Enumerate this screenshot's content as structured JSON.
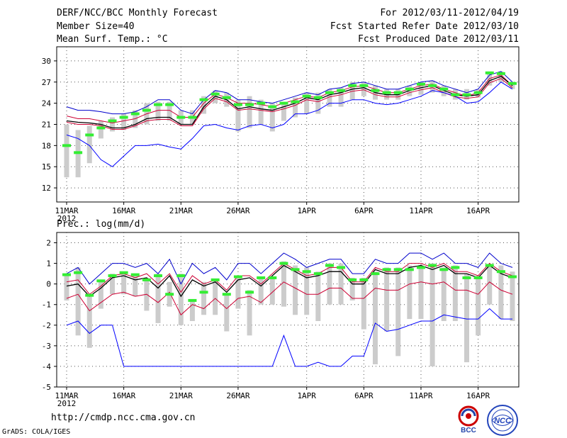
{
  "header": {
    "title": "DERF/NCC/BCC Monthly Forecast",
    "member_size": "Member Size=40",
    "variable": "Mean Surf. Temp.: °C",
    "forecast_period": "For 2012/03/11-2012/04/19",
    "started_refer": "Fcst Started Refer Date 2012/03/10",
    "produced": "Fcst Produced Date 2012/03/11"
  },
  "footer": {
    "url": "http://cmdp.ncc.cma.gov.cn",
    "grads": "GrADS: COLA/IGES",
    "logo_bcc": "BCC",
    "logo_ncc": "NCC"
  },
  "colors": {
    "max_line": "#0000cc",
    "min_line": "#0000ff",
    "mean_line": "#000000",
    "upper_line": "#cc0033",
    "lower_line": "#cc0033",
    "box": "#cccccc",
    "median": "#33ee33",
    "grid": "#555555"
  },
  "chart_data": [
    {
      "type": "line",
      "title": "Mean Surf. Temp.: °C",
      "x_ticks": [
        {
          "index": 0,
          "label": "11MAR"
        },
        {
          "index": 5,
          "label": "16MAR"
        },
        {
          "index": 10,
          "label": "21MAR"
        },
        {
          "index": 15,
          "label": "26MAR"
        },
        {
          "index": 21,
          "label": "1APR"
        },
        {
          "index": 26,
          "label": "6APR"
        },
        {
          "index": 31,
          "label": "11APR"
        },
        {
          "index": 36,
          "label": "16APR"
        }
      ],
      "year_label": "2012",
      "ylim": [
        10,
        32
      ],
      "yticks": [
        12,
        15,
        18,
        21,
        24,
        27,
        30
      ],
      "series": [
        {
          "name": "max",
          "values": [
            23.5,
            23.0,
            23.0,
            22.8,
            22.5,
            22.5,
            22.8,
            23.5,
            24.5,
            24.5,
            23.0,
            22.5,
            24.5,
            25.8,
            25.5,
            24.5,
            24.5,
            24.2,
            24.0,
            24.5,
            25.0,
            25.5,
            25.2,
            26.0,
            26.2,
            26.8,
            27.0,
            26.5,
            26.0,
            26.0,
            26.5,
            27.0,
            27.2,
            26.5,
            26.0,
            25.5,
            26.0,
            28.0,
            28.5,
            27.0
          ]
        },
        {
          "name": "upper",
          "values": [
            22.2,
            21.8,
            21.8,
            21.5,
            21.2,
            21.5,
            21.8,
            22.5,
            23.0,
            23.0,
            22.0,
            22.0,
            24.0,
            25.3,
            24.8,
            24.0,
            24.0,
            23.8,
            23.5,
            24.0,
            24.5,
            25.0,
            24.8,
            25.5,
            25.8,
            26.3,
            26.5,
            26.0,
            25.5,
            25.5,
            26.0,
            26.5,
            26.7,
            26.0,
            25.5,
            25.0,
            25.5,
            27.5,
            28.0,
            26.5
          ]
        },
        {
          "name": "mean",
          "values": [
            21.5,
            21.3,
            21.2,
            21.0,
            20.5,
            20.5,
            21.0,
            21.8,
            22.0,
            22.0,
            21.0,
            21.0,
            23.5,
            25.0,
            24.5,
            23.2,
            23.5,
            23.2,
            23.0,
            23.5,
            24.0,
            24.8,
            24.5,
            25.2,
            25.5,
            26.0,
            26.2,
            25.5,
            25.2,
            25.2,
            25.8,
            26.2,
            26.5,
            25.8,
            25.2,
            25.0,
            25.2,
            27.2,
            27.8,
            26.5
          ]
        },
        {
          "name": "lower",
          "values": [
            21.3,
            21.0,
            21.0,
            20.8,
            20.3,
            20.3,
            20.8,
            21.5,
            21.7,
            21.7,
            20.8,
            20.8,
            23.2,
            24.7,
            24.2,
            23.0,
            23.2,
            23.0,
            22.8,
            23.2,
            23.7,
            24.5,
            24.2,
            24.9,
            25.2,
            25.7,
            25.9,
            25.2,
            24.9,
            24.9,
            25.5,
            25.9,
            26.2,
            25.5,
            24.9,
            24.7,
            24.9,
            26.9,
            27.5,
            26.2
          ]
        },
        {
          "name": "min",
          "values": [
            19.5,
            19.0,
            18.0,
            16.0,
            15.0,
            16.5,
            18.0,
            18.0,
            18.2,
            17.8,
            17.5,
            19.0,
            20.8,
            21.0,
            20.5,
            20.2,
            20.8,
            21.0,
            20.5,
            21.0,
            22.5,
            22.5,
            23.0,
            24.0,
            24.0,
            24.5,
            24.5,
            24.0,
            23.8,
            24.0,
            24.5,
            25.0,
            25.8,
            25.5,
            25.0,
            24.0,
            24.2,
            25.5,
            27.0,
            26.0
          ]
        }
      ],
      "boxes": [
        {
          "low": 13.5,
          "high": 21.0,
          "median": 18.0
        },
        {
          "low": 13.5,
          "high": 20.2,
          "median": 17.0
        },
        {
          "low": 15.5,
          "high": 20.8,
          "median": 19.5
        },
        {
          "low": 19.0,
          "high": 21.5,
          "median": 20.5
        },
        {
          "low": 20.0,
          "high": 22.0,
          "median": 21.5
        },
        {
          "low": 20.2,
          "high": 22.5,
          "median": 22.0
        },
        {
          "low": 20.5,
          "high": 23.0,
          "median": 22.5
        },
        {
          "low": 21.0,
          "high": 24.0,
          "median": 23.0
        },
        {
          "low": 21.5,
          "high": 24.2,
          "median": 23.8
        },
        {
          "low": 21.5,
          "high": 24.2,
          "median": 23.8
        },
        {
          "low": 21.0,
          "high": 23.0,
          "median": 22.0
        },
        {
          "low": 21.0,
          "high": 23.0,
          "median": 22.0
        },
        {
          "low": 22.5,
          "high": 25.0,
          "median": 24.5
        },
        {
          "low": 24.0,
          "high": 25.8,
          "median": 25.3
        },
        {
          "low": 23.5,
          "high": 25.5,
          "median": 24.8
        },
        {
          "low": 20.0,
          "high": 24.5,
          "median": 23.8
        },
        {
          "low": 20.5,
          "high": 25.0,
          "median": 23.8
        },
        {
          "low": 21.0,
          "high": 24.5,
          "median": 24.0
        },
        {
          "low": 20.0,
          "high": 24.0,
          "median": 23.5
        },
        {
          "low": 21.5,
          "high": 24.2,
          "median": 24.0
        },
        {
          "low": 22.0,
          "high": 24.8,
          "median": 24.2
        },
        {
          "low": 22.5,
          "high": 25.5,
          "median": 25.0
        },
        {
          "low": 22.5,
          "high": 25.5,
          "median": 24.8
        },
        {
          "low": 23.5,
          "high": 26.0,
          "median": 25.5
        },
        {
          "low": 23.5,
          "high": 26.2,
          "median": 25.8
        },
        {
          "low": 24.5,
          "high": 27.0,
          "median": 26.5
        },
        {
          "low": 25.0,
          "high": 27.0,
          "median": 26.5
        },
        {
          "low": 24.5,
          "high": 26.5,
          "median": 25.8
        },
        {
          "low": 24.5,
          "high": 26.0,
          "median": 25.5
        },
        {
          "low": 24.5,
          "high": 26.0,
          "median": 25.5
        },
        {
          "low": 25.0,
          "high": 26.5,
          "median": 26.0
        },
        {
          "low": 25.2,
          "high": 27.0,
          "median": 26.7
        },
        {
          "low": 25.5,
          "high": 27.2,
          "median": 26.5
        },
        {
          "low": 25.0,
          "high": 26.5,
          "median": 26.0
        },
        {
          "low": 24.5,
          "high": 26.0,
          "median": 25.2
        },
        {
          "low": 24.5,
          "high": 26.0,
          "median": 25.2
        },
        {
          "low": 24.8,
          "high": 26.0,
          "median": 25.5
        },
        {
          "low": 26.5,
          "high": 28.5,
          "median": 28.3
        },
        {
          "low": 27.0,
          "high": 28.5,
          "median": 28.2
        },
        {
          "low": 26.0,
          "high": 27.0,
          "median": 26.8
        }
      ]
    },
    {
      "type": "line",
      "title": "Prec.: log(mm/d)",
      "x_ticks": [
        {
          "index": 0,
          "label": "11MAR"
        },
        {
          "index": 5,
          "label": "16MAR"
        },
        {
          "index": 10,
          "label": "21MAR"
        },
        {
          "index": 15,
          "label": "26MAR"
        },
        {
          "index": 21,
          "label": "1APR"
        },
        {
          "index": 26,
          "label": "6APR"
        },
        {
          "index": 31,
          "label": "11APR"
        },
        {
          "index": 36,
          "label": "16APR"
        }
      ],
      "year_label": "2012",
      "ylim": [
        -5,
        2.5
      ],
      "yticks": [
        -5,
        -4,
        -3,
        -2,
        -1,
        0,
        1,
        2
      ],
      "series": [
        {
          "name": "max",
          "values": [
            0.5,
            0.8,
            0.0,
            0.5,
            1.0,
            1.0,
            0.8,
            1.0,
            0.5,
            1.2,
            0.0,
            1.0,
            0.5,
            0.8,
            0.2,
            1.0,
            1.0,
            0.5,
            1.0,
            1.5,
            1.2,
            0.8,
            1.0,
            1.2,
            1.2,
            0.5,
            0.5,
            1.2,
            1.0,
            1.0,
            1.5,
            1.5,
            1.2,
            1.5,
            1.0,
            1.0,
            0.8,
            1.5,
            1.0,
            0.8
          ]
        },
        {
          "name": "upper",
          "values": [
            0.1,
            0.2,
            -0.5,
            -0.1,
            0.4,
            0.5,
            0.3,
            0.5,
            0.0,
            0.5,
            -0.4,
            0.4,
            0.0,
            0.2,
            -0.3,
            0.4,
            0.4,
            0.0,
            0.5,
            1.0,
            0.7,
            0.4,
            0.5,
            0.8,
            0.8,
            0.1,
            0.1,
            0.8,
            0.6,
            0.6,
            1.0,
            1.0,
            0.8,
            1.0,
            0.6,
            0.6,
            0.4,
            1.0,
            0.6,
            0.4
          ]
        },
        {
          "name": "mean",
          "values": [
            -0.1,
            0.0,
            -0.6,
            -0.2,
            0.3,
            0.4,
            0.2,
            0.3,
            -0.2,
            0.4,
            -0.6,
            0.2,
            -0.1,
            0.1,
            -0.4,
            0.2,
            0.3,
            -0.1,
            0.4,
            0.9,
            0.6,
            0.3,
            0.4,
            0.6,
            0.6,
            0.0,
            0.0,
            0.7,
            0.5,
            0.5,
            0.8,
            0.9,
            0.7,
            0.9,
            0.5,
            0.5,
            0.3,
            0.9,
            0.5,
            0.3
          ]
        },
        {
          "name": "lower",
          "values": [
            -0.7,
            -0.5,
            -1.3,
            -0.9,
            -0.5,
            -0.4,
            -0.6,
            -0.5,
            -0.9,
            -0.4,
            -1.5,
            -1.0,
            -1.2,
            -0.7,
            -1.2,
            -0.7,
            -0.6,
            -0.9,
            -0.4,
            0.1,
            -0.2,
            -0.5,
            -0.5,
            -0.2,
            -0.2,
            -0.7,
            -0.7,
            -0.2,
            -0.3,
            -0.3,
            0.0,
            0.1,
            0.0,
            0.1,
            -0.3,
            -0.3,
            -0.5,
            0.1,
            -0.3,
            -0.5
          ]
        },
        {
          "name": "min",
          "values": [
            -2.0,
            -1.8,
            -2.4,
            -2.0,
            -2.0,
            -4.0,
            -4.0,
            -4.0,
            -4.0,
            -4.0,
            -4.0,
            -4.0,
            -4.0,
            -4.0,
            -4.0,
            -4.0,
            -4.0,
            -4.0,
            -4.0,
            -2.5,
            -4.0,
            -4.0,
            -3.8,
            -4.0,
            -4.0,
            -3.5,
            -3.5,
            -1.9,
            -2.3,
            -2.2,
            -2.0,
            -1.8,
            -1.8,
            -1.5,
            -1.6,
            -1.7,
            -1.7,
            -1.2,
            -1.7,
            -1.7
          ]
        }
      ],
      "boxes": [
        {
          "low": -0.8,
          "high": 0.5,
          "median": 0.45
        },
        {
          "low": -2.5,
          "high": 0.8,
          "median": 0.55
        },
        {
          "low": -3.1,
          "high": -0.5,
          "median": -0.55
        },
        {
          "low": -1.2,
          "high": 0.2,
          "median": 0.15
        },
        {
          "low": -0.5,
          "high": 0.5,
          "median": 0.4
        },
        {
          "low": -0.5,
          "high": 0.6,
          "median": 0.55
        },
        {
          "low": -0.6,
          "high": 0.5,
          "median": 0.45
        },
        {
          "low": -1.3,
          "high": 0.3,
          "median": 0.2
        },
        {
          "low": -1.9,
          "high": 0.5,
          "median": 0.4
        },
        {
          "low": -1.1,
          "high": 0.1,
          "median": -0.5
        },
        {
          "low": -2.0,
          "high": 0.5,
          "median": 0.4
        },
        {
          "low": -1.8,
          "high": -0.8,
          "median": -0.8
        },
        {
          "low": -1.5,
          "high": 0.1,
          "median": -0.4
        },
        {
          "low": -1.5,
          "high": 0.2,
          "median": 0.2
        },
        {
          "low": -2.3,
          "high": -0.5,
          "median": -0.5
        },
        {
          "low": -1.2,
          "high": 0.4,
          "median": 0.35
        },
        {
          "low": -2.5,
          "high": -0.3,
          "median": -0.4
        },
        {
          "low": -1.0,
          "high": 0.3,
          "median": 0.3
        },
        {
          "low": -1.0,
          "high": 0.3,
          "median": 0.3
        },
        {
          "low": -1.1,
          "high": 1.1,
          "median": 1.0
        },
        {
          "low": -1.5,
          "high": 0.9,
          "median": 0.7
        },
        {
          "low": -1.5,
          "high": 0.8,
          "median": 0.6
        },
        {
          "low": -1.8,
          "high": 0.6,
          "median": 0.5
        },
        {
          "low": -1.0,
          "high": 1.0,
          "median": 0.9
        },
        {
          "low": -1.0,
          "high": 1.0,
          "median": 0.8
        },
        {
          "low": -0.8,
          "high": 0.3,
          "median": 0.2
        },
        {
          "low": -2.2,
          "high": 0.3,
          "median": 0.2
        },
        {
          "low": -3.9,
          "high": 0.6,
          "median": 0.5
        },
        {
          "low": -2.3,
          "high": 0.8,
          "median": 0.7
        },
        {
          "low": -3.5,
          "high": 0.8,
          "median": 0.7
        },
        {
          "low": -1.7,
          "high": 0.9,
          "median": 0.7
        },
        {
          "low": -1.7,
          "high": 0.9,
          "median": 0.8
        },
        {
          "low": -4.0,
          "high": 1.0,
          "median": 0.9
        },
        {
          "low": -1.8,
          "high": 0.8,
          "median": 0.7
        },
        {
          "low": -1.8,
          "high": 0.9,
          "median": 0.8
        },
        {
          "low": -3.8,
          "high": 0.5,
          "median": 0.3
        },
        {
          "low": -2.5,
          "high": 0.4,
          "median": 0.3
        },
        {
          "low": -1.0,
          "high": 0.9,
          "median": 0.9
        },
        {
          "low": -1.7,
          "high": 0.9,
          "median": 0.6
        },
        {
          "low": -1.8,
          "high": 0.6,
          "median": 0.35
        }
      ]
    }
  ]
}
